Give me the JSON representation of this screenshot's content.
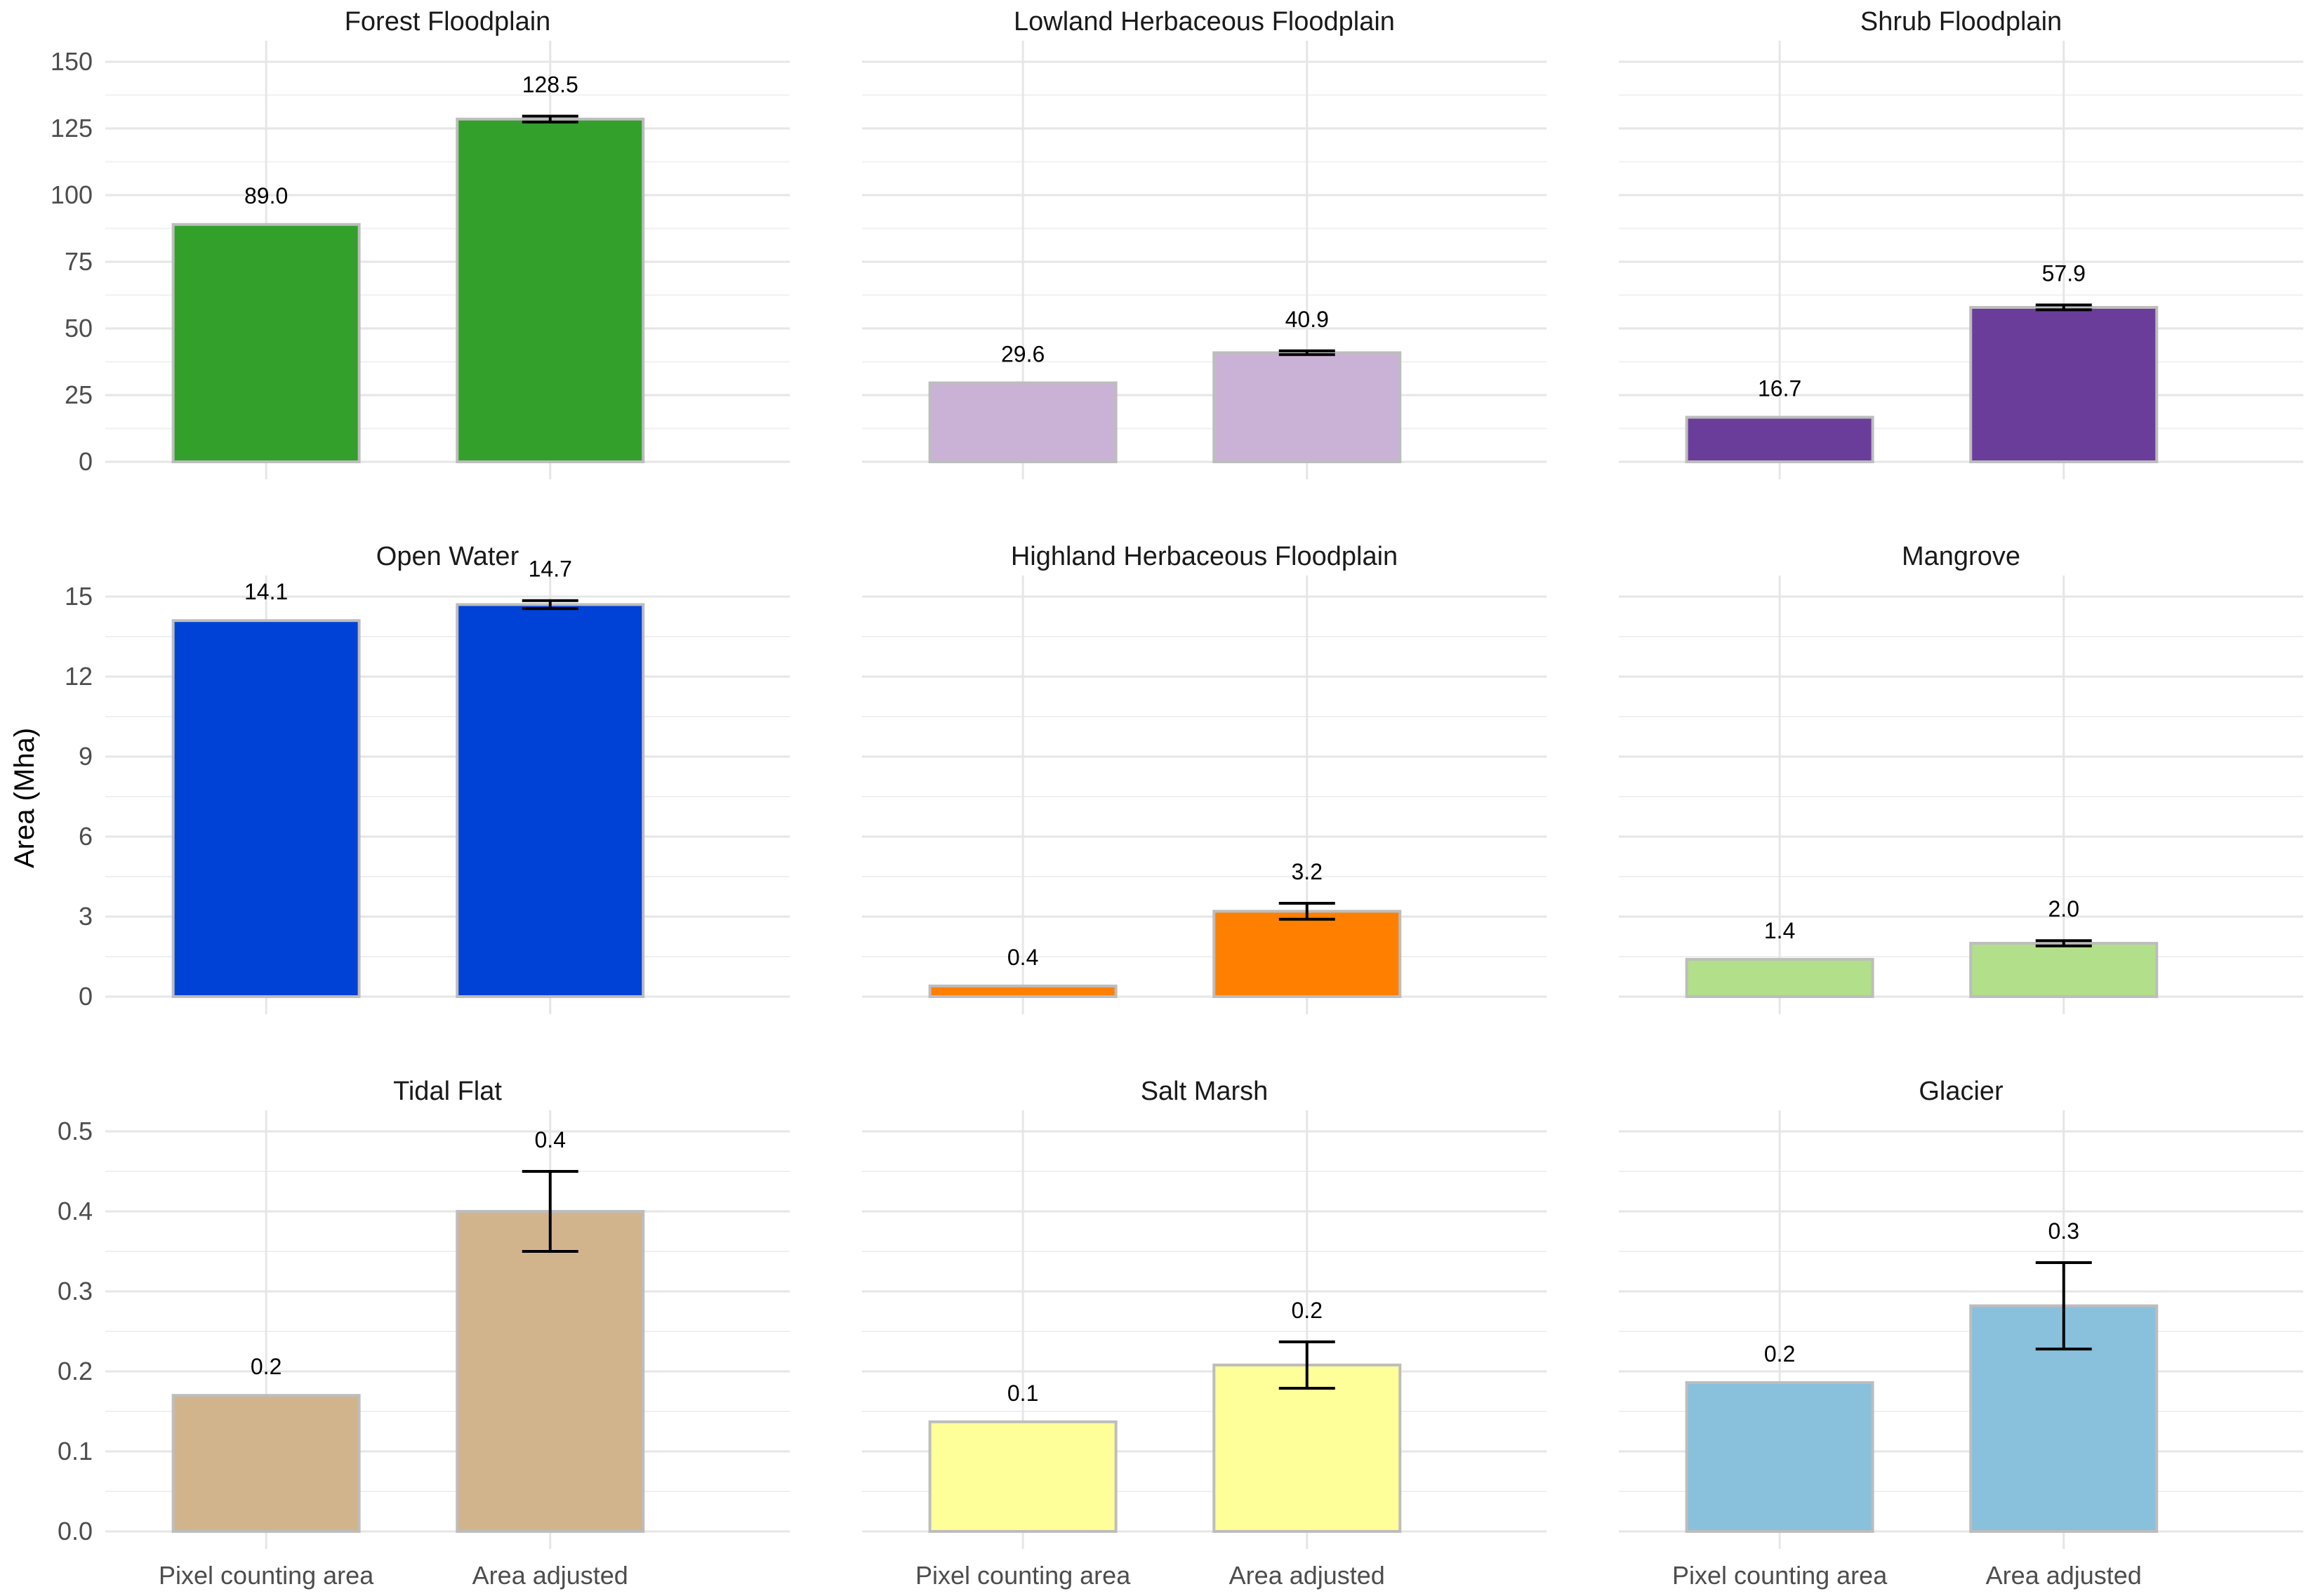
{
  "chart_data": {
    "type": "bar",
    "ylabel": "Area (Mha)",
    "categories": [
      "Pixel counting area",
      "Area adjusted"
    ],
    "panels": [
      {
        "title": "Forest Floodplain",
        "color": "#33a02c",
        "ylim": [
          0,
          150
        ],
        "ticks": [
          0,
          25,
          50,
          75,
          100,
          125,
          150
        ],
        "values": [
          89.0,
          128.5
        ],
        "labels": [
          "89.0",
          "128.5"
        ],
        "error": [
          null,
          [
            127.4,
            129.6
          ]
        ]
      },
      {
        "title": "Lowland Herbaceous Floodplain",
        "color": "#cab2d6",
        "ylim": [
          0,
          150
        ],
        "ticks": [
          0,
          25,
          50,
          75,
          100,
          125,
          150
        ],
        "values": [
          29.6,
          40.9
        ],
        "labels": [
          "29.6",
          "40.9"
        ],
        "error": [
          null,
          [
            40.2,
            41.6
          ]
        ]
      },
      {
        "title": "Shrub Floodplain",
        "color": "#6a3d9a",
        "ylim": [
          0,
          150
        ],
        "ticks": [
          0,
          25,
          50,
          75,
          100,
          125,
          150
        ],
        "values": [
          16.7,
          57.9
        ],
        "labels": [
          "16.7",
          "57.9"
        ],
        "error": [
          null,
          [
            57.0,
            58.8
          ]
        ]
      },
      {
        "title": "Open Water",
        "color": "#0041d6",
        "ylim": [
          0,
          15
        ],
        "ticks": [
          0,
          3,
          6,
          9,
          12,
          15
        ],
        "values": [
          14.1,
          14.7
        ],
        "labels": [
          "14.1",
          "14.7"
        ],
        "error": [
          null,
          [
            14.55,
            14.85
          ]
        ]
      },
      {
        "title": "Highland Herbaceous Floodplain",
        "color": "#ff7f00",
        "ylim": [
          0,
          15
        ],
        "ticks": [
          0,
          3,
          6,
          9,
          12,
          15
        ],
        "values": [
          0.4,
          3.2
        ],
        "labels": [
          "0.4",
          "3.2"
        ],
        "error": [
          null,
          [
            2.9,
            3.5
          ]
        ]
      },
      {
        "title": "Mangrove",
        "color": "#b2df8a",
        "ylim": [
          0,
          15
        ],
        "ticks": [
          0,
          3,
          6,
          9,
          12,
          15
        ],
        "values": [
          1.4,
          2.0
        ],
        "labels": [
          "1.4",
          "2.0"
        ],
        "error": [
          null,
          [
            1.9,
            2.1
          ]
        ]
      },
      {
        "title": "Tidal Flat",
        "color": "#d2b48c",
        "ylim": [
          0,
          0.5
        ],
        "ticks": [
          0.0,
          0.1,
          0.2,
          0.3,
          0.4,
          0.5
        ],
        "tick_labels": [
          "0.0",
          "0.1",
          "0.2",
          "0.3",
          "0.4",
          "0.5"
        ],
        "values": [
          0.17,
          0.4
        ],
        "labels": [
          "0.2",
          "0.4"
        ],
        "error": [
          null,
          [
            0.35,
            0.45
          ]
        ]
      },
      {
        "title": "Salt Marsh",
        "color": "#ffff99",
        "ylim": [
          0,
          0.5
        ],
        "ticks": [
          0.0,
          0.1,
          0.2,
          0.3,
          0.4,
          0.5
        ],
        "tick_labels": [
          "0.0",
          "0.1",
          "0.2",
          "0.3",
          "0.4",
          "0.5"
        ],
        "values": [
          0.137,
          0.208
        ],
        "labels": [
          "0.1",
          "0.2"
        ],
        "error": [
          null,
          [
            0.179,
            0.237
          ]
        ]
      },
      {
        "title": "Glacier",
        "color": "#89c0dc",
        "ylim": [
          0,
          0.5
        ],
        "ticks": [
          0.0,
          0.1,
          0.2,
          0.3,
          0.4,
          0.5
        ],
        "tick_labels": [
          "0.0",
          "0.1",
          "0.2",
          "0.3",
          "0.4",
          "0.5"
        ],
        "values": [
          0.186,
          0.282
        ],
        "labels": [
          "0.2",
          "0.3"
        ],
        "error": [
          null,
          [
            0.228,
            0.336
          ]
        ]
      }
    ]
  }
}
